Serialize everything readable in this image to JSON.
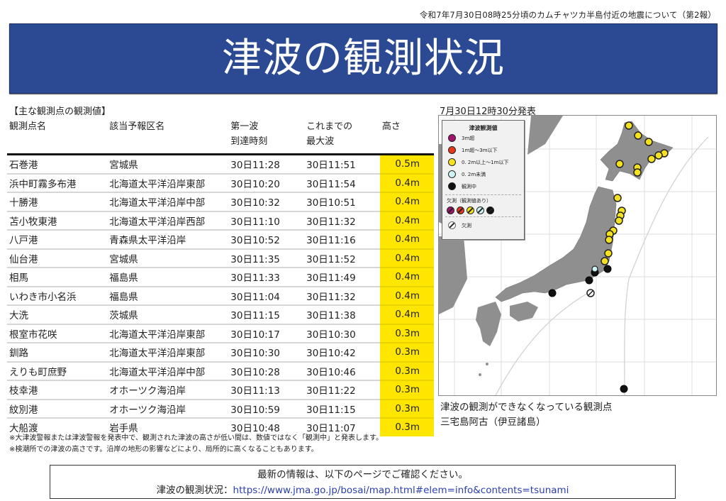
{
  "header": {
    "subtitle": "令和7年7月30日08時25分頃のカムチャツカ半島付近の地震について（第2報）",
    "title": "津波の観測状況"
  },
  "table": {
    "section_label": "【主な観測点の観測値】",
    "columns": [
      "観測点名",
      "該当予報区名",
      "第一波\n到達時刻",
      "これまでの\n最大波",
      "高さ"
    ],
    "col_labels": {
      "station": "観測点名",
      "region": "該当予報区名",
      "first_wave_l1": "第一波",
      "first_wave_l2": "到達時刻",
      "max_wave_l1": "これまでの",
      "max_wave_l2": "最大波",
      "height": "高さ"
    },
    "rows": [
      {
        "station": "石巻港",
        "region": "宮城県",
        "first": "30日11:28",
        "max": "30日11:51",
        "height": "0.5m"
      },
      {
        "station": "浜中町霧多布港",
        "region": "北海道太平洋沿岸東部",
        "first": "30日10:20",
        "max": "30日11:54",
        "height": "0.4m"
      },
      {
        "station": "十勝港",
        "region": "北海道太平洋沿岸中部",
        "first": "30日10:32",
        "max": "30日10:51",
        "height": "0.4m"
      },
      {
        "station": "苫小牧東港",
        "region": "北海道太平洋沿岸西部",
        "first": "30日11:10",
        "max": "30日11:32",
        "height": "0.4m"
      },
      {
        "station": "八戸港",
        "region": "青森県太平洋沿岸",
        "first": "30日10:52",
        "max": "30日11:16",
        "height": "0.4m"
      },
      {
        "station": "仙台港",
        "region": "宮城県",
        "first": "30日11:35",
        "max": "30日11:52",
        "height": "0.4m"
      },
      {
        "station": "相馬",
        "region": "福島県",
        "first": "30日11:33",
        "max": "30日11:49",
        "height": "0.4m"
      },
      {
        "station": "いわき市小名浜",
        "region": "福島県",
        "first": "30日11:04",
        "max": "30日11:32",
        "height": "0.4m"
      },
      {
        "station": "大洗",
        "region": "茨城県",
        "first": "30日11:15",
        "max": "30日11:38",
        "height": "0.4m"
      },
      {
        "station": "根室市花咲",
        "region": "北海道太平洋沿岸東部",
        "first": "30日10:17",
        "max": "30日10:30",
        "height": "0.3m"
      },
      {
        "station": "釧路",
        "region": "北海道太平洋沿岸東部",
        "first": "30日10:30",
        "max": "30日10:42",
        "height": "0.3m"
      },
      {
        "station": "えりも町庶野",
        "region": "北海道太平洋沿岸中部",
        "first": "30日10:28",
        "max": "30日10:46",
        "height": "0.3m"
      },
      {
        "station": "枝幸港",
        "region": "オホーツク海沿岸",
        "first": "30日11:13",
        "max": "30日11:22",
        "height": "0.3m"
      },
      {
        "station": "紋別港",
        "region": "オホーツク海沿岸",
        "first": "30日10:59",
        "max": "30日11:15",
        "height": "0.3m"
      },
      {
        "station": "大船渡",
        "region": "岩手県",
        "first": "30日10:48",
        "max": "30日11:07",
        "height": "0.3m"
      }
    ],
    "height_highlight_color": "#ffe600"
  },
  "notes": [
    "※大津波警報または津波警報を発表中で、観測された津波の高さが低い間は、数値ではなく「観測中」と発表します。",
    "※検潮所での津波の高さです。沿岸の地形の影響などにより、局所的に高くなることもあります。"
  ],
  "map": {
    "issued": "7月30日12時30分発表",
    "legend": {
      "title": "津波観測値",
      "items": [
        {
          "label": "3m超",
          "color": "#a0146e"
        },
        {
          "label": "1m超～3m以下",
          "color": "#e8381b"
        },
        {
          "label": "0. 2m以上～1m以下",
          "color": "#f5e11e"
        },
        {
          "label": "0. 2m未満",
          "color": "#cdf3f5"
        },
        {
          "label": "観測中",
          "color": "#111111"
        }
      ],
      "missing_with_value_label": "欠測（観測値あり）",
      "missing_label": "欠測"
    },
    "unavailable_title": "津波の観測ができなくなっている観測点",
    "unavailable_station": "三宅島阿古（伊豆諸島）"
  },
  "footer": {
    "line1": "最新の情報は、以下のページでご確認ください。",
    "label": "津波の観測状況：",
    "url": "https://www.jma.go.jp/bosai/map.html#elem=info&contents=tsunami"
  },
  "colors": {
    "banner": "#2c4a94",
    "land": "#8f8f8f",
    "link": "#2b3fb0"
  }
}
